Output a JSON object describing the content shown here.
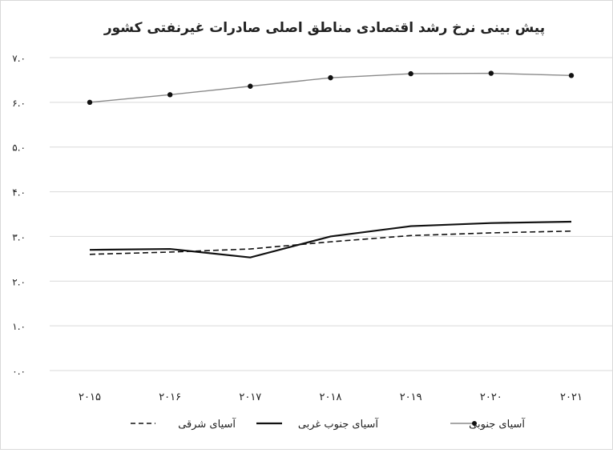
{
  "chart_data": {
    "type": "line",
    "title": "پیش بینی نرخ رشد اقتصادی مناطق اصلی صادرات غیرنفتی کشور",
    "xlabel": "",
    "ylabel": "",
    "categories": [
      "۲۰۱۵",
      "۲۰۱۶",
      "۲۰۱۷",
      "۲۰۱۸",
      "۲۰۱۹",
      "۲۰۲۰",
      "۲۰۲۱"
    ],
    "y_ticks": [
      "۰.۰",
      "۱.۰",
      "۲.۰",
      "۳.۰",
      "۴.۰",
      "۵.۰",
      "۶.۰",
      "۷.۰"
    ],
    "y_tick_values": [
      0,
      1,
      2,
      3,
      4,
      5,
      6,
      7
    ],
    "ylim": [
      0,
      7
    ],
    "grid": true,
    "legend_position": "bottom",
    "series": [
      {
        "name": "آسیای جنوبی",
        "style": "line-markers",
        "color": "#8a8a8a",
        "values": [
          6.0,
          6.17,
          6.36,
          6.55,
          6.64,
          6.65,
          6.6
        ]
      },
      {
        "name": "آسیای جنوب غربی",
        "style": "solid",
        "color": "#111111",
        "values": [
          2.7,
          2.72,
          2.53,
          3.0,
          3.23,
          3.3,
          3.33
        ]
      },
      {
        "name": "آسیای شرقی",
        "style": "dashed",
        "color": "#111111",
        "values": [
          2.6,
          2.65,
          2.72,
          2.88,
          3.02,
          3.08,
          3.12
        ]
      }
    ]
  }
}
